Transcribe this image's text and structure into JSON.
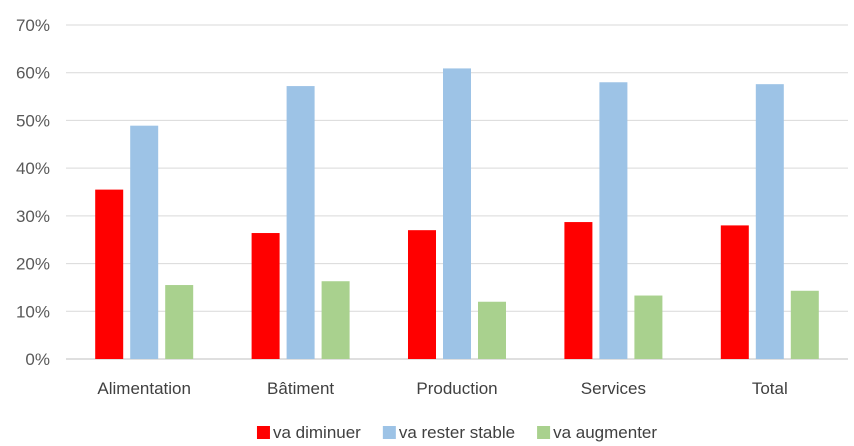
{
  "chart_data": {
    "type": "bar",
    "title": "",
    "xlabel": "",
    "ylabel": "",
    "categories": [
      "Alimentation",
      "Bâtiment",
      "Production",
      "Services",
      "Total"
    ],
    "series": [
      {
        "name": "va diminuer",
        "color": "#ff0000",
        "values": [
          35.5,
          26.4,
          27.0,
          28.7,
          28.0
        ]
      },
      {
        "name": "va rester stable",
        "color": "#9dc3e6",
        "values": [
          48.9,
          57.2,
          60.9,
          58.0,
          57.6
        ]
      },
      {
        "name": "va augmenter",
        "color": "#a9d18e",
        "values": [
          15.5,
          16.3,
          12.0,
          13.3,
          14.3
        ]
      }
    ],
    "ylim": [
      0,
      70
    ],
    "yticks": [
      0,
      10,
      20,
      30,
      40,
      50,
      60,
      70
    ],
    "ytick_labels": [
      "0%",
      "10%",
      "20%",
      "30%",
      "40%",
      "50%",
      "60%",
      "70%"
    ],
    "grid": true,
    "legend_position": "bottom"
  }
}
